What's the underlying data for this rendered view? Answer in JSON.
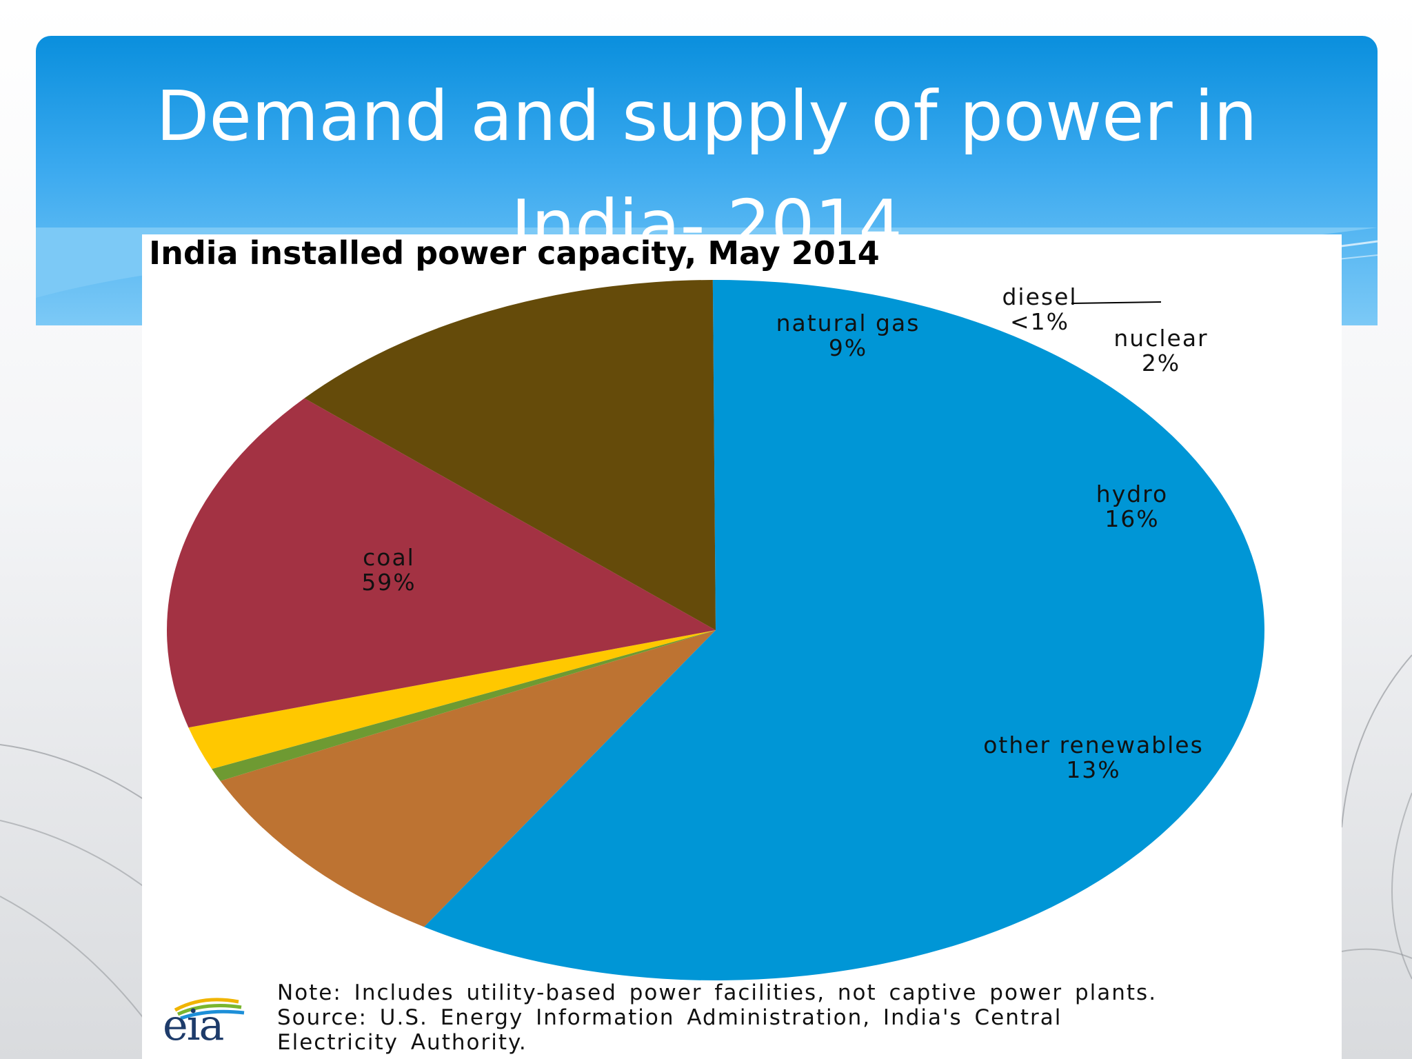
{
  "slide": {
    "title_line1": "Demand and supply of power in",
    "title_line2": "India- 2014",
    "header_color": "#0a8fdd"
  },
  "chart_data": {
    "type": "pie",
    "title": "India installed power capacity, May 2014",
    "slices": [
      {
        "name": "coal",
        "value_label": "59%",
        "value": 59.0,
        "color": "#0096d6"
      },
      {
        "name": "natural gas",
        "value_label": "9%",
        "value": 9.0,
        "color": "#bd7332"
      },
      {
        "name": "diesel",
        "value_label": "<1%",
        "value": 0.6,
        "color": "#6e9a32"
      },
      {
        "name": "nuclear",
        "value_label": "2%",
        "value": 2.0,
        "color": "#ffc800"
      },
      {
        "name": "hydro",
        "value_label": "16%",
        "value": 16.0,
        "color": "#a33243"
      },
      {
        "name": "other renewables",
        "value_label": "13%",
        "value": 13.4,
        "color": "#654b0a"
      }
    ],
    "note": [
      "Note: Includes utility-based power facilities, not captive power plants.",
      "Source: U.S. Energy Information  Administration, India's Central",
      "Electricity Authority."
    ],
    "source_logo": "eia"
  }
}
